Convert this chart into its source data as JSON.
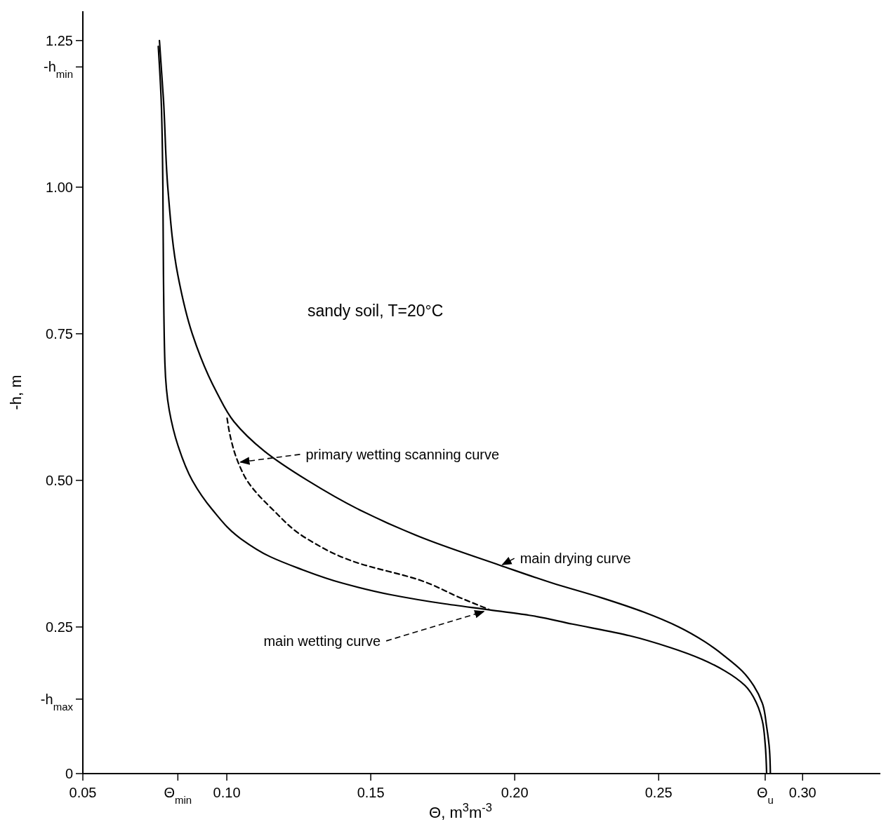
{
  "chart_data": {
    "type": "line",
    "xlabel": "Θ, m$^{3}$m$^{-3}$",
    "ylabel": "-h, m",
    "annotations": [
      "sandy soil,  T=20°C",
      {
        "text": "main wetting curve",
        "x": 0.19,
        "y": 0.28
      },
      {
        "text": "main drying curve",
        "x": 0.195,
        "y": 0.355
      },
      {
        "text": "primary wetting scanning curve",
        "x": 0.104,
        "y": 0.53
      }
    ],
    "xlim": [
      0.05,
      0.327
    ],
    "ylim": [
      0,
      1.3
    ],
    "xticks": [
      {
        "value": 0.05,
        "label": "0.05"
      },
      {
        "value": 0.083,
        "label": "Θ$_{min}$"
      },
      {
        "value": 0.1,
        "label": "0.10"
      },
      {
        "value": 0.15,
        "label": "0.15"
      },
      {
        "value": 0.2,
        "label": "0.20"
      },
      {
        "value": 0.25,
        "label": "0.25"
      },
      {
        "value": 0.287,
        "label": "Θ$_{u}$"
      },
      {
        "value": 0.3,
        "label": "0.30"
      }
    ],
    "yticks": [
      0,
      {
        "value": 0.127,
        "label": "-h$_{max}$"
      },
      0.25,
      {
        "value": 0.5,
        "label": "0.50"
      },
      0.75,
      {
        "value": 1,
        "label": "1.00"
      },
      {
        "value": 1.205,
        "label": "-h$_{min}$"
      },
      1.25
    ],
    "grid": false,
    "marker": "none",
    "series": [
      {
        "color": "#000000",
        "line_style": "solid",
        "x": [
          0.0762,
          0.0772,
          0.0778,
          0.078,
          0.0785,
          0.08,
          0.083,
          0.088,
          0.095,
          0.105,
          0.115,
          0.125,
          0.14,
          0.157,
          0.175,
          0.19,
          0.205,
          0.22,
          0.24,
          0.254,
          0.265,
          0.273,
          0.28,
          0.284,
          0.286,
          0.287,
          0.2875
        ],
        "values": [
          1.24,
          1.15,
          1.0,
          0.85,
          0.7,
          0.62,
          0.56,
          0.5,
          0.45,
          0.4,
          0.37,
          0.35,
          0.325,
          0.305,
          0.29,
          0.28,
          0.27,
          0.255,
          0.235,
          0.215,
          0.195,
          0.175,
          0.15,
          0.12,
          0.09,
          0.05,
          0
        ]
      },
      {
        "color": "#000000",
        "line_style": "solid",
        "x": [
          0.0766,
          0.078,
          0.0795,
          0.083,
          0.088,
          0.0965,
          0.1025,
          0.113,
          0.128,
          0.146,
          0.169,
          0.195,
          0.213,
          0.23,
          0.245,
          0.257,
          0.266,
          0.273,
          0.279,
          0.283,
          0.286,
          0.2875,
          0.2885,
          0.2888
        ],
        "values": [
          1.25,
          1.15,
          1.0,
          0.85,
          0.75,
          0.65,
          0.6,
          0.55,
          0.5,
          0.45,
          0.4,
          0.355,
          0.325,
          0.3,
          0.275,
          0.25,
          0.225,
          0.2,
          0.175,
          0.15,
          0.12,
          0.08,
          0.04,
          0
        ]
      },
      {
        "color": "#000000",
        "line_style": "dashed",
        "x": [
          0.1001,
          0.101,
          0.104,
          0.107,
          0.116,
          0.128,
          0.145,
          0.167,
          0.181,
          0.191
        ],
        "values": [
          0.606,
          0.58,
          0.53,
          0.5,
          0.45,
          0.4,
          0.36,
          0.33,
          0.3,
          0.28
        ]
      }
    ]
  }
}
